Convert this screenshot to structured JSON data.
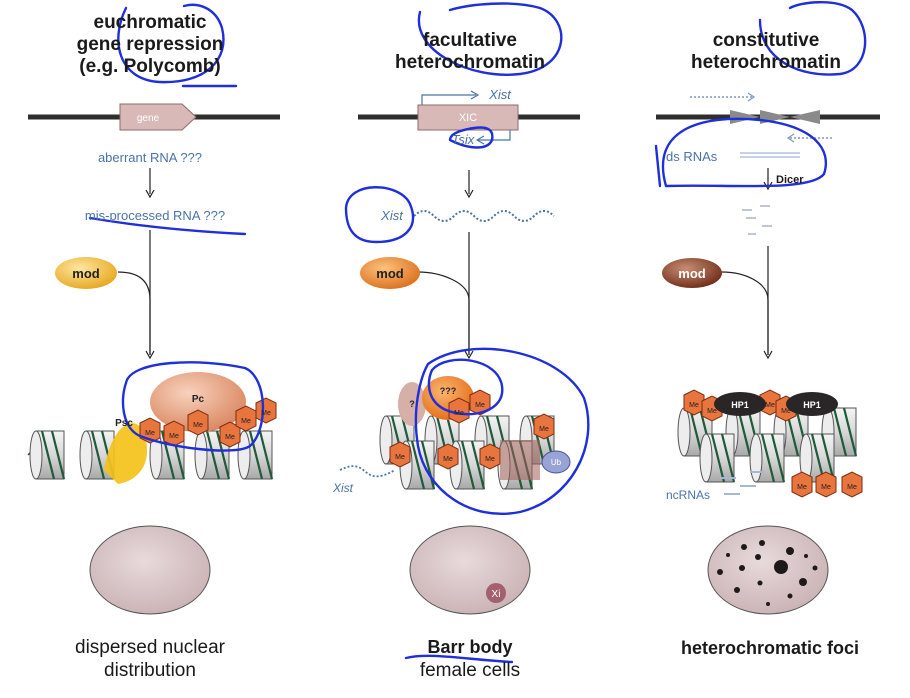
{
  "columns": [
    {
      "title_lines": [
        "euchromatic",
        "gene repression",
        "(e.g. Polycomb)"
      ],
      "gene_label": "gene",
      "rna_labels": [
        "aberrant RNA ???",
        "mis-processed RNA ???"
      ],
      "modifier_label": "mod",
      "protein_labels": [
        "Psc",
        "Pc"
      ],
      "mark_label": "Me",
      "caption_lines": [
        "dispersed nuclear",
        "distribution"
      ],
      "colors": {
        "modifier": "#f2b632",
        "complex": "#ecb08e",
        "psc": "#f5c21b",
        "mark": "#e8743e"
      }
    },
    {
      "title_lines": [
        "facultative",
        "heterochromatin"
      ],
      "locus_label": "XIC",
      "transcripts": [
        "Xist",
        "Tsix"
      ],
      "rna_label": "Xist",
      "modifier_label": "mod",
      "protein_labels": [
        "???",
        "?",
        "Ub"
      ],
      "mark_label": "Me",
      "coat_label": "Xist",
      "nucleus_label": "Xi",
      "caption_lines": [
        "Barr body",
        "female cells"
      ],
      "colors": {
        "modifier": "#ef8f35",
        "complex": "#f08a2f",
        "ub": "#9aa3d6"
      }
    },
    {
      "title_lines": [
        "constitutive",
        "heterochromatin"
      ],
      "rna_labels": [
        "ds RNAs",
        "Dicer"
      ],
      "modifier_label": "mod",
      "protein_labels": [
        "HP1"
      ],
      "mark_label": "Me",
      "ncrna_label": "ncRNAs",
      "caption_lines": [
        "heterochromatic foci"
      ],
      "colors": {
        "modifier": "#8a3b22",
        "hp1": "#2a2526"
      }
    }
  ],
  "colors": {
    "annotation": "#1f2fd9",
    "nucleus": "#d9c5c6",
    "dna": "#2e2e2e",
    "text_blue": "#4a73a8"
  }
}
